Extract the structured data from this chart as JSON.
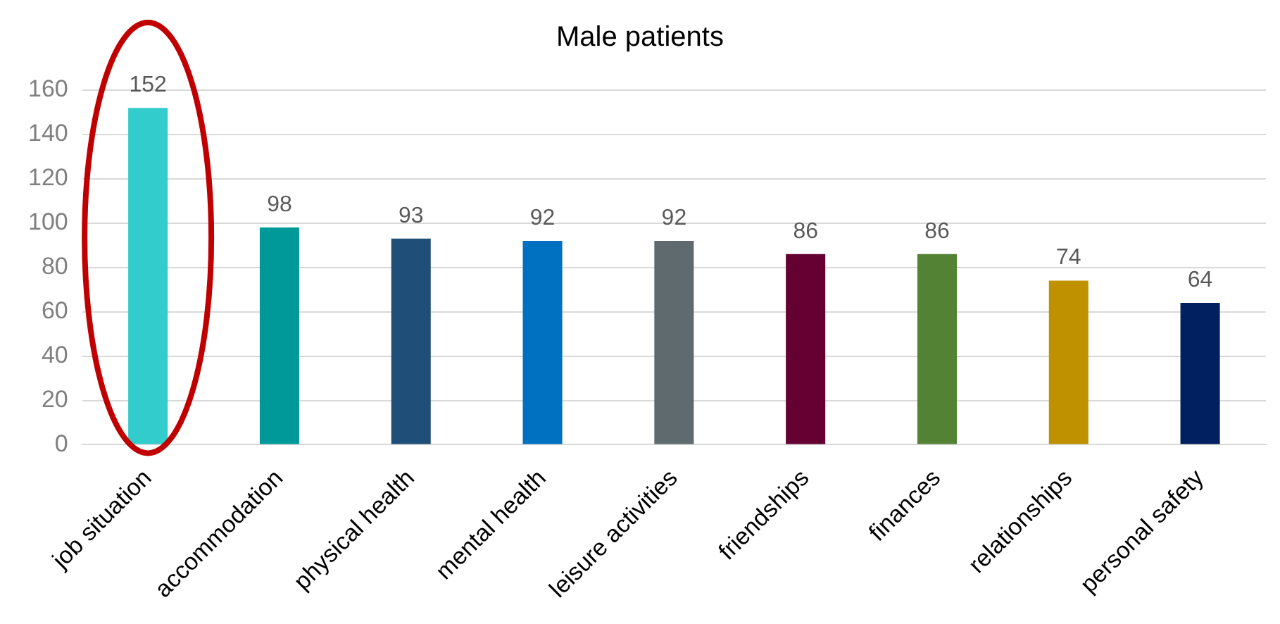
{
  "chart_data": {
    "type": "bar",
    "title": "Male patients",
    "categories": [
      "job situation",
      "accommodation",
      "physical health",
      "mental health",
      "leisure activities",
      "friendships",
      "finances",
      "relationships",
      "personal safety"
    ],
    "values": [
      152,
      98,
      93,
      92,
      92,
      86,
      86,
      74,
      64
    ],
    "colors": [
      "#33cccc",
      "#009999",
      "#1f4e79",
      "#0070c0",
      "#5f6a6e",
      "#660033",
      "#548235",
      "#bf9000",
      "#002060"
    ],
    "ylim": [
      0,
      160
    ],
    "yticks": [
      0,
      20,
      40,
      60,
      80,
      100,
      120,
      140,
      160
    ],
    "grid": "y",
    "data_labels": true
  }
}
